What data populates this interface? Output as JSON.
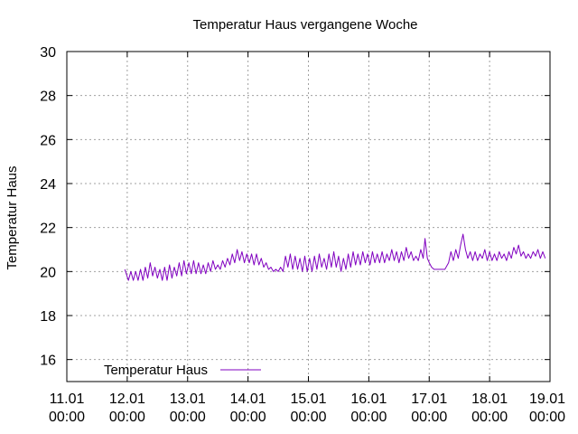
{
  "chart_data": {
    "type": "line",
    "title": "Temperatur Haus vergangene Woche",
    "ylabel": "Temperatur Haus",
    "xlabel": "",
    "ylim": [
      15,
      30
    ],
    "yticks": [
      16,
      18,
      20,
      22,
      24,
      26,
      28,
      30
    ],
    "xlim_days": [
      11,
      19
    ],
    "xticks": [
      {
        "date": "11.01",
        "time": "00:00",
        "day": 11
      },
      {
        "date": "12.01",
        "time": "00:00",
        "day": 12
      },
      {
        "date": "13.01",
        "time": "00:00",
        "day": 13
      },
      {
        "date": "14.01",
        "time": "00:00",
        "day": 14
      },
      {
        "date": "15.01",
        "time": "00:00",
        "day": 15
      },
      {
        "date": "16.01",
        "time": "00:00",
        "day": 16
      },
      {
        "date": "17.01",
        "time": "00:00",
        "day": 17
      },
      {
        "date": "18.01",
        "time": "00:00",
        "day": 18
      },
      {
        "date": "19.01",
        "time": "00:00",
        "day": 19
      }
    ],
    "grid": true,
    "legend_position": "bottom-left",
    "series": [
      {
        "name": "Temperatur Haus",
        "color": "#8000c0",
        "points": [
          [
            11.96,
            20.1
          ],
          [
            12.02,
            19.6
          ],
          [
            12.06,
            20.0
          ],
          [
            12.1,
            19.6
          ],
          [
            12.14,
            20.0
          ],
          [
            12.18,
            19.6
          ],
          [
            12.22,
            20.1
          ],
          [
            12.26,
            19.6
          ],
          [
            12.3,
            20.2
          ],
          [
            12.34,
            19.7
          ],
          [
            12.38,
            20.4
          ],
          [
            12.42,
            19.8
          ],
          [
            12.46,
            20.2
          ],
          [
            12.5,
            19.7
          ],
          [
            12.54,
            20.1
          ],
          [
            12.58,
            19.6
          ],
          [
            12.62,
            20.2
          ],
          [
            12.66,
            19.6
          ],
          [
            12.7,
            20.3
          ],
          [
            12.74,
            19.7
          ],
          [
            12.78,
            20.2
          ],
          [
            12.82,
            19.8
          ],
          [
            12.86,
            20.4
          ],
          [
            12.9,
            19.8
          ],
          [
            12.94,
            20.5
          ],
          [
            12.98,
            19.9
          ],
          [
            13.02,
            20.4
          ],
          [
            13.06,
            19.9
          ],
          [
            13.1,
            20.5
          ],
          [
            13.14,
            19.9
          ],
          [
            13.18,
            20.4
          ],
          [
            13.22,
            19.9
          ],
          [
            13.26,
            20.3
          ],
          [
            13.3,
            19.9
          ],
          [
            13.34,
            20.4
          ],
          [
            13.38,
            20.0
          ],
          [
            13.42,
            20.5
          ],
          [
            13.46,
            20.1
          ],
          [
            13.5,
            20.3
          ],
          [
            13.54,
            20.1
          ],
          [
            13.58,
            20.5
          ],
          [
            13.62,
            20.2
          ],
          [
            13.66,
            20.6
          ],
          [
            13.7,
            20.3
          ],
          [
            13.74,
            20.8
          ],
          [
            13.78,
            20.4
          ],
          [
            13.82,
            21.0
          ],
          [
            13.86,
            20.5
          ],
          [
            13.9,
            20.9
          ],
          [
            13.94,
            20.4
          ],
          [
            13.98,
            20.8
          ],
          [
            14.02,
            20.4
          ],
          [
            14.06,
            20.8
          ],
          [
            14.1,
            20.3
          ],
          [
            14.14,
            20.8
          ],
          [
            14.18,
            20.3
          ],
          [
            14.22,
            20.6
          ],
          [
            14.26,
            20.2
          ],
          [
            14.3,
            20.4
          ],
          [
            14.34,
            20.1
          ],
          [
            14.38,
            20.2
          ],
          [
            14.42,
            20.0
          ],
          [
            14.46,
            20.1
          ],
          [
            14.5,
            20.0
          ],
          [
            14.54,
            20.2
          ],
          [
            14.58,
            20.0
          ],
          [
            14.62,
            20.7
          ],
          [
            14.66,
            20.2
          ],
          [
            14.7,
            20.8
          ],
          [
            14.74,
            20.1
          ],
          [
            14.78,
            20.7
          ],
          [
            14.82,
            20.1
          ],
          [
            14.86,
            20.6
          ],
          [
            14.9,
            20.0
          ],
          [
            14.94,
            20.7
          ],
          [
            14.98,
            20.0
          ],
          [
            15.02,
            20.6
          ],
          [
            15.06,
            20.0
          ],
          [
            15.1,
            20.7
          ],
          [
            15.14,
            20.1
          ],
          [
            15.18,
            20.8
          ],
          [
            15.22,
            20.2
          ],
          [
            15.26,
            20.6
          ],
          [
            15.3,
            20.1
          ],
          [
            15.34,
            20.8
          ],
          [
            15.38,
            20.2
          ],
          [
            15.42,
            20.9
          ],
          [
            15.46,
            20.2
          ],
          [
            15.5,
            20.7
          ],
          [
            15.54,
            20.0
          ],
          [
            15.58,
            20.6
          ],
          [
            15.62,
            20.1
          ],
          [
            15.66,
            20.8
          ],
          [
            15.7,
            20.2
          ],
          [
            15.74,
            20.9
          ],
          [
            15.78,
            20.3
          ],
          [
            15.82,
            20.8
          ],
          [
            15.86,
            20.3
          ],
          [
            15.9,
            20.9
          ],
          [
            15.94,
            20.4
          ],
          [
            15.98,
            20.8
          ],
          [
            16.02,
            20.3
          ],
          [
            16.06,
            20.9
          ],
          [
            16.1,
            20.4
          ],
          [
            16.14,
            20.8
          ],
          [
            16.18,
            20.4
          ],
          [
            16.22,
            20.9
          ],
          [
            16.26,
            20.4
          ],
          [
            16.3,
            20.8
          ],
          [
            16.34,
            20.5
          ],
          [
            16.38,
            21.0
          ],
          [
            16.42,
            20.5
          ],
          [
            16.46,
            20.9
          ],
          [
            16.5,
            20.4
          ],
          [
            16.54,
            20.9
          ],
          [
            16.58,
            20.5
          ],
          [
            16.62,
            21.1
          ],
          [
            16.66,
            20.6
          ],
          [
            16.7,
            20.9
          ],
          [
            16.74,
            20.5
          ],
          [
            16.78,
            20.7
          ],
          [
            16.82,
            20.5
          ],
          [
            16.86,
            21.0
          ],
          [
            16.9,
            20.6
          ],
          [
            16.93,
            21.5
          ],
          [
            16.97,
            20.6
          ],
          [
            17.0,
            20.4
          ],
          [
            17.04,
            20.2
          ],
          [
            17.08,
            20.1
          ],
          [
            17.14,
            20.1
          ],
          [
            17.2,
            20.1
          ],
          [
            17.26,
            20.1
          ],
          [
            17.32,
            20.4
          ],
          [
            17.36,
            20.9
          ],
          [
            17.4,
            20.5
          ],
          [
            17.44,
            21.0
          ],
          [
            17.48,
            20.6
          ],
          [
            17.52,
            21.2
          ],
          [
            17.56,
            21.7
          ],
          [
            17.6,
            21.0
          ],
          [
            17.64,
            20.6
          ],
          [
            17.68,
            20.9
          ],
          [
            17.72,
            20.5
          ],
          [
            17.76,
            20.9
          ],
          [
            17.8,
            20.5
          ],
          [
            17.84,
            20.8
          ],
          [
            17.88,
            20.6
          ],
          [
            17.92,
            21.0
          ],
          [
            17.96,
            20.5
          ],
          [
            18.0,
            20.9
          ],
          [
            18.04,
            20.5
          ],
          [
            18.08,
            20.8
          ],
          [
            18.12,
            20.5
          ],
          [
            18.16,
            20.9
          ],
          [
            18.2,
            20.6
          ],
          [
            18.24,
            20.8
          ],
          [
            18.28,
            20.5
          ],
          [
            18.32,
            20.9
          ],
          [
            18.36,
            20.6
          ],
          [
            18.4,
            21.1
          ],
          [
            18.44,
            20.8
          ],
          [
            18.48,
            21.2
          ],
          [
            18.52,
            20.7
          ],
          [
            18.56,
            20.9
          ],
          [
            18.6,
            20.6
          ],
          [
            18.64,
            20.8
          ],
          [
            18.68,
            20.6
          ],
          [
            18.72,
            20.9
          ],
          [
            18.76,
            20.7
          ],
          [
            18.8,
            21.0
          ],
          [
            18.84,
            20.6
          ],
          [
            18.88,
            20.9
          ],
          [
            18.92,
            20.6
          ]
        ]
      }
    ]
  }
}
